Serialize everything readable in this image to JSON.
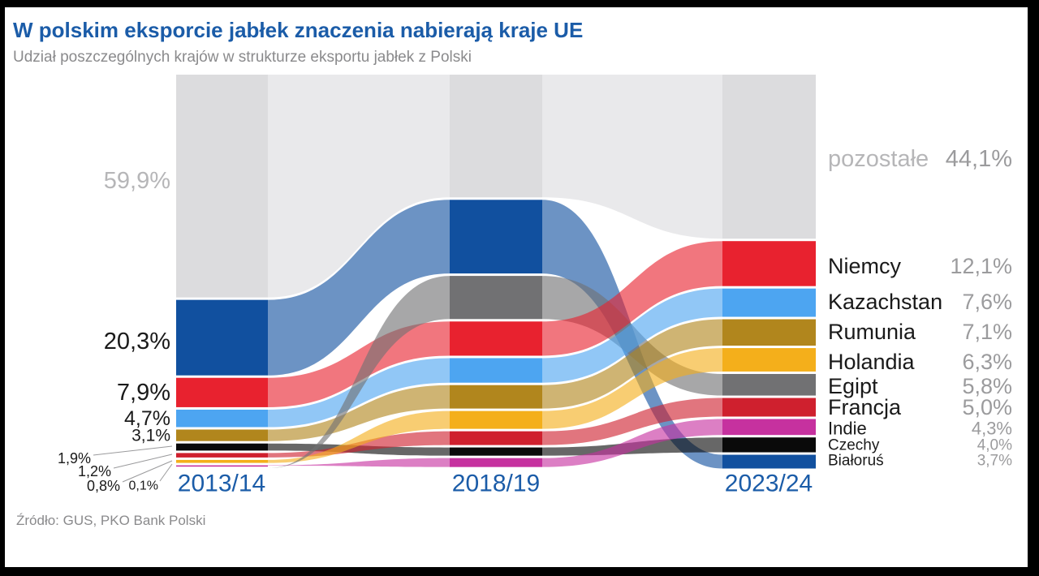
{
  "title": "W polskim eksporcie jabłek znaczenia nabierają kraje UE",
  "subtitle": "Udział poszczególnych krajów w strukturze eksportu jabłek z Polski",
  "source": "Źródło: GUS, PKO Bank Polski",
  "colors": {
    "accent_blue": "#1b5ca8",
    "muted_gray_text": "#b6b6b8",
    "value_gray_text": "#9b9b9d",
    "dark_text": "#1a1a1a",
    "frame_black": "#000000",
    "background": "#ffffff"
  },
  "chart_data": {
    "type": "alluvial",
    "unit": "%",
    "periods": [
      "2013/14",
      "2018/19",
      "2023/24"
    ],
    "series": [
      {
        "name": "pozostałe",
        "color": "#dcdcde",
        "values": [
          59.9,
          33.0,
          44.1
        ],
        "pct_labels": [
          "59,9%",
          "",
          "44,1%"
        ]
      },
      {
        "name": "Białoruś",
        "color": "#11509f",
        "values": [
          20.3,
          19.8,
          3.7
        ],
        "pct_labels": [
          "20,3%",
          "",
          "3,7%"
        ]
      },
      {
        "name": "Niemcy",
        "color": "#e8222f",
        "values": [
          7.9,
          9.2,
          12.1
        ],
        "pct_labels": [
          "7,9%",
          "",
          "12,1%"
        ]
      },
      {
        "name": "Kazachstan",
        "color": "#4da5f1",
        "values": [
          4.7,
          6.6,
          7.6
        ],
        "pct_labels": [
          "4,7%",
          "",
          "7,6%"
        ]
      },
      {
        "name": "Rumunia",
        "color": "#b1861d",
        "values": [
          3.1,
          6.3,
          7.1
        ],
        "pct_labels": [
          "3,1%",
          "",
          "7,1%"
        ]
      },
      {
        "name": "Czechy",
        "color": "#0a0a0a",
        "values": [
          1.9,
          2.2,
          4.0
        ],
        "pct_labels": [
          "1,9%",
          "",
          "4,0%"
        ]
      },
      {
        "name": "Francja",
        "color": "#cf202e",
        "values": [
          1.2,
          3.7,
          5.0
        ],
        "pct_labels": [
          "1,2%",
          "",
          "5,0%"
        ]
      },
      {
        "name": "Holandia",
        "color": "#f4af1b",
        "values": [
          0.8,
          4.8,
          6.3
        ],
        "pct_labels": [
          "0,8%",
          "",
          "6,3%"
        ]
      },
      {
        "name": "Indie",
        "color": "#c6319f",
        "values": [
          0.1,
          2.4,
          4.3
        ],
        "pct_labels": [
          "0,1%",
          "",
          "4,3%"
        ]
      },
      {
        "name": "Egipt",
        "color": "#717173",
        "values": [
          0.0,
          11.6,
          5.8
        ],
        "pct_labels": [
          "",
          "",
          "5,8%"
        ]
      }
    ],
    "column_orders": [
      [
        "pozostałe",
        "Białoruś",
        "Niemcy",
        "Kazachstan",
        "Rumunia",
        "Czechy",
        "Francja",
        "Holandia",
        "Indie",
        "Egipt"
      ],
      [
        "pozostałe",
        "Białoruś",
        "Egipt",
        "Niemcy",
        "Kazachstan",
        "Rumunia",
        "Holandia",
        "Francja",
        "Czechy",
        "Indie"
      ],
      [
        "pozostałe",
        "Niemcy",
        "Kazachstan",
        "Rumunia",
        "Holandia",
        "Egipt",
        "Francja",
        "Indie",
        "Czechy",
        "Białoruś"
      ]
    ],
    "legend_position": "right",
    "grid": false
  }
}
